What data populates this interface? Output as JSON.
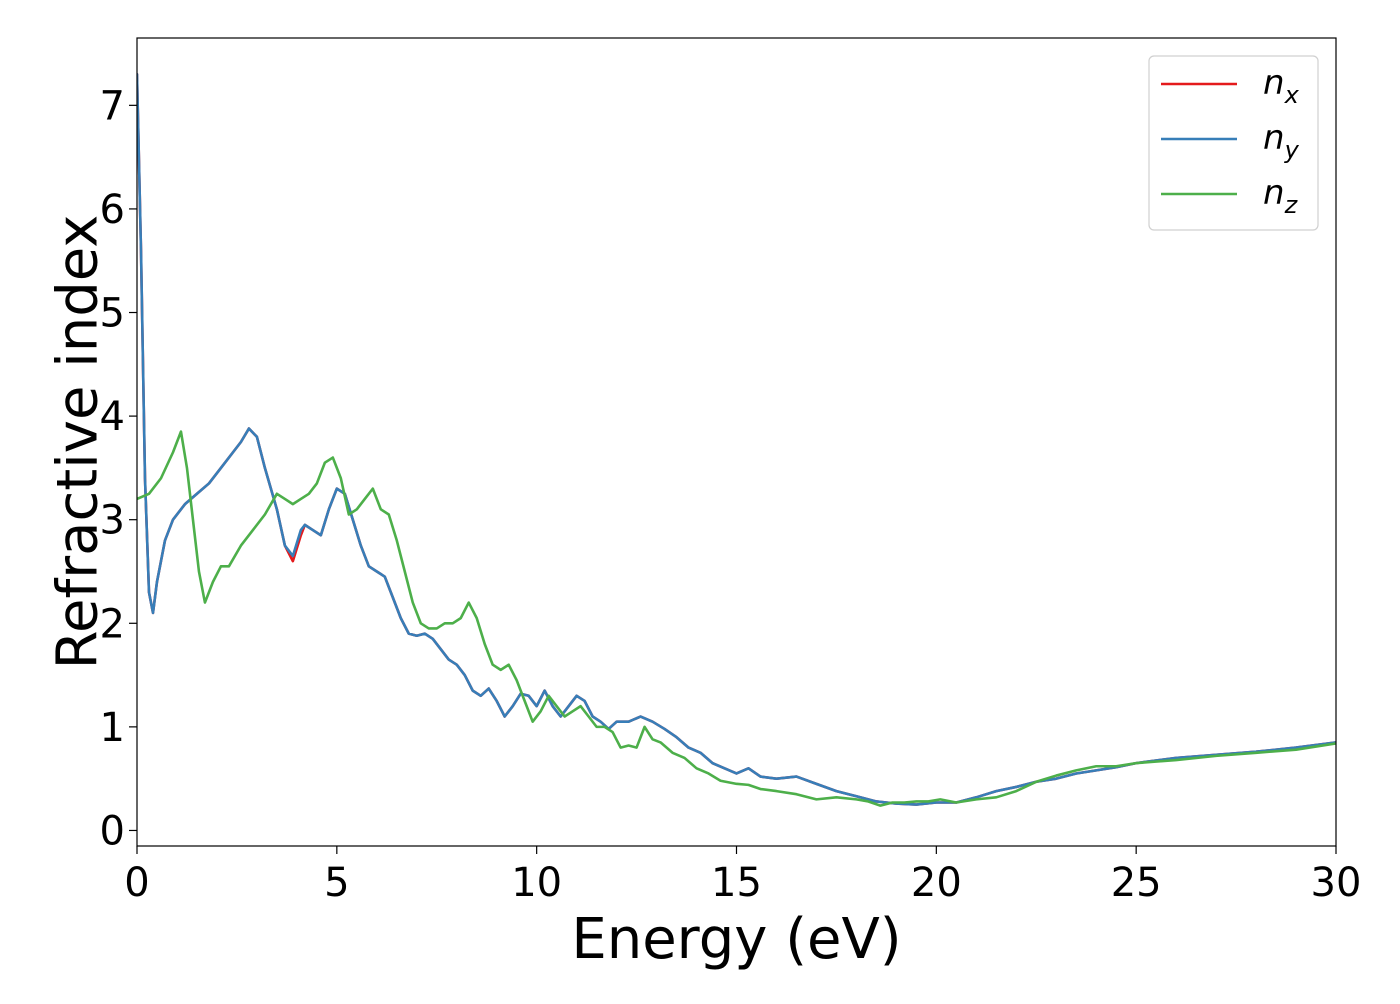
{
  "chart_data": {
    "type": "line",
    "title": "",
    "xlabel": "Energy (eV)",
    "ylabel": "Refractive index",
    "xlim": [
      0,
      30
    ],
    "ylim": [
      -0.15,
      7.65
    ],
    "xticks": [
      0,
      5,
      10,
      15,
      20,
      25,
      30
    ],
    "yticks": [
      0,
      1,
      2,
      3,
      4,
      5,
      6,
      7
    ],
    "grid": false,
    "legend_position": "top-right",
    "series": [
      {
        "name": "n_x",
        "label_base": "n",
        "label_sub": "x",
        "color": "#e41a1c",
        "x": [
          0,
          0.1,
          0.2,
          0.3,
          0.4,
          0.5,
          0.7,
          0.9,
          1.2,
          1.5,
          1.8,
          2.1,
          2.4,
          2.6,
          2.8,
          3.0,
          3.2,
          3.5,
          3.7,
          3.9,
          4.1,
          4.2,
          4.4,
          4.6,
          4.8,
          5.0,
          5.2,
          5.4,
          5.6,
          5.8,
          6.0,
          6.2,
          6.4,
          6.6,
          6.8,
          7.0,
          7.2,
          7.4,
          7.6,
          7.8,
          8.0,
          8.2,
          8.4,
          8.6,
          8.8,
          9.0,
          9.2,
          9.4,
          9.6,
          9.8,
          10.0,
          10.2,
          10.4,
          10.6,
          10.8,
          11.0,
          11.2,
          11.4,
          11.6,
          11.8,
          12.0,
          12.3,
          12.6,
          12.9,
          13.2,
          13.5,
          13.8,
          14.1,
          14.4,
          14.7,
          15.0,
          15.3,
          15.6,
          16.0,
          16.5,
          17.0,
          17.5,
          18.0,
          18.5,
          19.0,
          19.5,
          20.0,
          20.5,
          21.0,
          21.5,
          22.0,
          22.5,
          23.0,
          23.5,
          24.0,
          24.5,
          25.0,
          26.0,
          27.0,
          28.0,
          29.0,
          30.0
        ],
        "y": [
          7.3,
          5.6,
          3.4,
          2.3,
          2.1,
          2.4,
          2.8,
          3.0,
          3.15,
          3.25,
          3.35,
          3.5,
          3.65,
          3.75,
          3.88,
          3.8,
          3.5,
          3.1,
          2.75,
          2.6,
          2.85,
          2.95,
          2.9,
          2.85,
          3.1,
          3.3,
          3.25,
          3.0,
          2.75,
          2.55,
          2.5,
          2.45,
          2.25,
          2.05,
          1.9,
          1.88,
          1.9,
          1.85,
          1.75,
          1.65,
          1.6,
          1.5,
          1.35,
          1.3,
          1.37,
          1.25,
          1.1,
          1.2,
          1.32,
          1.3,
          1.2,
          1.35,
          1.2,
          1.1,
          1.2,
          1.3,
          1.25,
          1.1,
          1.05,
          0.98,
          1.05,
          1.05,
          1.1,
          1.05,
          0.98,
          0.9,
          0.8,
          0.75,
          0.65,
          0.6,
          0.55,
          0.6,
          0.52,
          0.5,
          0.52,
          0.45,
          0.38,
          0.33,
          0.28,
          0.26,
          0.25,
          0.27,
          0.27,
          0.32,
          0.38,
          0.42,
          0.47,
          0.5,
          0.55,
          0.58,
          0.61,
          0.65,
          0.7,
          0.73,
          0.76,
          0.8,
          0.85
        ]
      },
      {
        "name": "n_y",
        "label_base": "n",
        "label_sub": "y",
        "color": "#377eb8",
        "x": [
          0,
          0.1,
          0.2,
          0.3,
          0.4,
          0.5,
          0.7,
          0.9,
          1.2,
          1.5,
          1.8,
          2.1,
          2.4,
          2.6,
          2.8,
          3.0,
          3.2,
          3.5,
          3.7,
          3.9,
          4.1,
          4.2,
          4.4,
          4.6,
          4.8,
          5.0,
          5.2,
          5.4,
          5.6,
          5.8,
          6.0,
          6.2,
          6.4,
          6.6,
          6.8,
          7.0,
          7.2,
          7.4,
          7.6,
          7.8,
          8.0,
          8.2,
          8.4,
          8.6,
          8.8,
          9.0,
          9.2,
          9.4,
          9.6,
          9.8,
          10.0,
          10.2,
          10.4,
          10.6,
          10.8,
          11.0,
          11.2,
          11.4,
          11.6,
          11.8,
          12.0,
          12.3,
          12.6,
          12.9,
          13.2,
          13.5,
          13.8,
          14.1,
          14.4,
          14.7,
          15.0,
          15.3,
          15.6,
          16.0,
          16.5,
          17.0,
          17.5,
          18.0,
          18.5,
          19.0,
          19.5,
          20.0,
          20.5,
          21.0,
          21.5,
          22.0,
          22.5,
          23.0,
          23.5,
          24.0,
          24.5,
          25.0,
          26.0,
          27.0,
          28.0,
          29.0,
          30.0
        ],
        "y": [
          7.3,
          5.6,
          3.4,
          2.3,
          2.1,
          2.4,
          2.8,
          3.0,
          3.15,
          3.25,
          3.35,
          3.5,
          3.65,
          3.75,
          3.88,
          3.8,
          3.5,
          3.1,
          2.75,
          2.65,
          2.9,
          2.95,
          2.9,
          2.85,
          3.1,
          3.3,
          3.25,
          3.0,
          2.75,
          2.55,
          2.5,
          2.45,
          2.25,
          2.05,
          1.9,
          1.88,
          1.9,
          1.85,
          1.75,
          1.65,
          1.6,
          1.5,
          1.35,
          1.3,
          1.37,
          1.25,
          1.1,
          1.2,
          1.32,
          1.3,
          1.2,
          1.35,
          1.2,
          1.1,
          1.2,
          1.3,
          1.25,
          1.1,
          1.05,
          0.98,
          1.05,
          1.05,
          1.1,
          1.05,
          0.98,
          0.9,
          0.8,
          0.75,
          0.65,
          0.6,
          0.55,
          0.6,
          0.52,
          0.5,
          0.52,
          0.45,
          0.38,
          0.33,
          0.28,
          0.26,
          0.25,
          0.27,
          0.27,
          0.32,
          0.38,
          0.42,
          0.47,
          0.5,
          0.55,
          0.58,
          0.61,
          0.65,
          0.7,
          0.73,
          0.76,
          0.8,
          0.85
        ]
      },
      {
        "name": "n_z",
        "label_base": "n",
        "label_sub": "z",
        "color": "#4daf4a",
        "x": [
          0,
          0.3,
          0.6,
          0.9,
          1.1,
          1.25,
          1.4,
          1.55,
          1.7,
          1.9,
          2.1,
          2.3,
          2.6,
          2.9,
          3.2,
          3.5,
          3.7,
          3.9,
          4.1,
          4.3,
          4.5,
          4.7,
          4.9,
          5.1,
          5.3,
          5.5,
          5.7,
          5.9,
          6.1,
          6.3,
          6.5,
          6.7,
          6.9,
          7.1,
          7.3,
          7.5,
          7.7,
          7.9,
          8.1,
          8.3,
          8.5,
          8.7,
          8.9,
          9.1,
          9.3,
          9.5,
          9.7,
          9.9,
          10.1,
          10.3,
          10.5,
          10.7,
          10.9,
          11.1,
          11.3,
          11.5,
          11.7,
          11.9,
          12.1,
          12.3,
          12.5,
          12.7,
          12.9,
          13.1,
          13.4,
          13.7,
          14.0,
          14.3,
          14.6,
          15.0,
          15.3,
          15.6,
          16.0,
          16.5,
          17.0,
          17.5,
          18.0,
          18.3,
          18.6,
          18.9,
          19.2,
          19.5,
          19.8,
          20.1,
          20.5,
          21.0,
          21.5,
          22.0,
          22.5,
          23.0,
          23.5,
          24.0,
          24.5,
          25.0,
          26.0,
          27.0,
          28.0,
          29.0,
          30.0
        ],
        "y": [
          3.2,
          3.25,
          3.4,
          3.65,
          3.85,
          3.5,
          3.0,
          2.5,
          2.2,
          2.4,
          2.55,
          2.55,
          2.75,
          2.9,
          3.05,
          3.25,
          3.2,
          3.15,
          3.2,
          3.25,
          3.35,
          3.55,
          3.6,
          3.4,
          3.05,
          3.1,
          3.2,
          3.3,
          3.1,
          3.05,
          2.8,
          2.5,
          2.2,
          2.0,
          1.95,
          1.95,
          2.0,
          2.0,
          2.05,
          2.2,
          2.05,
          1.8,
          1.6,
          1.55,
          1.6,
          1.45,
          1.25,
          1.05,
          1.15,
          1.3,
          1.2,
          1.1,
          1.15,
          1.2,
          1.1,
          1.0,
          1.0,
          0.95,
          0.8,
          0.82,
          0.8,
          1.0,
          0.88,
          0.85,
          0.75,
          0.7,
          0.6,
          0.55,
          0.48,
          0.45,
          0.44,
          0.4,
          0.38,
          0.35,
          0.3,
          0.32,
          0.3,
          0.28,
          0.24,
          0.27,
          0.27,
          0.28,
          0.28,
          0.3,
          0.27,
          0.3,
          0.32,
          0.38,
          0.47,
          0.53,
          0.58,
          0.62,
          0.62,
          0.65,
          0.68,
          0.72,
          0.75,
          0.78,
          0.84
        ]
      }
    ]
  }
}
